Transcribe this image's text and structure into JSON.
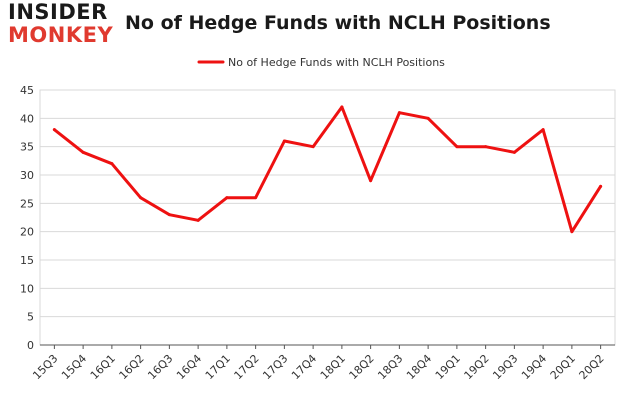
{
  "brand": {
    "line1": "INSIDER",
    "line2": "MONKEY"
  },
  "colors": {
    "series": "#ee1111",
    "grid": "#d9d9d9",
    "axis": "#555555",
    "brand_accent": "#e03a2f"
  },
  "chart_data": {
    "type": "line",
    "title": "No of Hedge Funds with NCLH Positions",
    "xlabel": "",
    "ylabel": "",
    "categories": [
      "15Q3",
      "15Q4",
      "16Q1",
      "16Q2",
      "16Q3",
      "16Q4",
      "17Q1",
      "17Q2",
      "17Q3",
      "17Q4",
      "18Q1",
      "18Q2",
      "18Q3",
      "18Q4",
      "19Q1",
      "19Q2",
      "19Q3",
      "19Q4",
      "20Q1",
      "20Q2"
    ],
    "series": [
      {
        "name": "No of Hedge Funds with NCLH Positions",
        "values": [
          38,
          34,
          32,
          26,
          23,
          22,
          26,
          26,
          36,
          35,
          42,
          29,
          41,
          40,
          35,
          35,
          34,
          38,
          20,
          28
        ]
      }
    ],
    "ylim": [
      0,
      45
    ],
    "yticks": [
      0,
      5,
      10,
      15,
      20,
      25,
      30,
      35,
      40,
      45
    ],
    "grid": true,
    "legend_position": "top-center"
  }
}
